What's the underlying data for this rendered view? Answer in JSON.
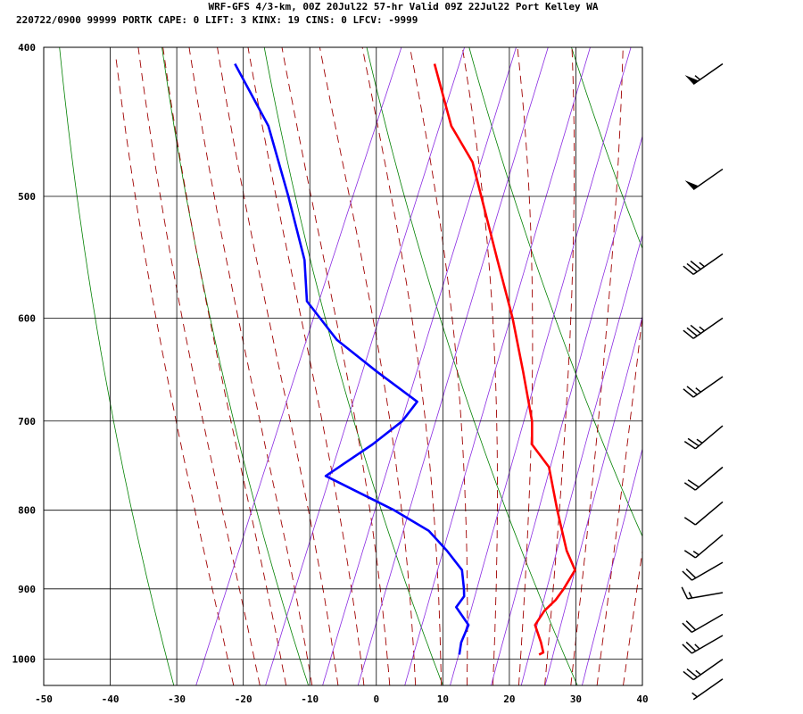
{
  "header": {
    "line1": "WRF-GFS 4/3-km, 00Z 20Jul22 57-hr Valid 09Z 22Jul22 Port Kelley WA",
    "line2": "220722/0900 99999  PORTK   CAPE:     0 LIFT:     3 KINX:    19 CINS:     0 LFCV: -9999"
  },
  "colors": {
    "temperature": "#ff0000",
    "dewpoint": "#0000ff",
    "isotherm_grid": "#000000",
    "dry_adiabat": "#008000",
    "moist_adiabat": "#a00000",
    "mixing_ratio": "#8a2be2",
    "wind_barb": "#000000"
  },
  "chart_data": {
    "type": "skew-t log-p sounding",
    "xlim": [
      -50,
      40
    ],
    "ylim": [
      1040,
      400
    ],
    "xticks": [
      "-50",
      "-40",
      "-30",
      "-20",
      "-10",
      "0",
      "10",
      "20",
      "30",
      "40"
    ],
    "yticks": [
      "400",
      "500",
      "600",
      "700",
      "800",
      "900",
      "1000"
    ],
    "grid": true,
    "series": [
      {
        "key": "temperature",
        "points": [
          {
            "p": 993,
            "t": 22.5
          },
          {
            "p": 990,
            "t": 23.0
          },
          {
            "p": 975,
            "t": 22.0
          },
          {
            "p": 950,
            "t": 20.0
          },
          {
            "p": 930,
            "t": 20.5
          },
          {
            "p": 915,
            "t": 21.5
          },
          {
            "p": 900,
            "t": 22.0
          },
          {
            "p": 875,
            "t": 22.5
          },
          {
            "p": 850,
            "t": 20.0
          },
          {
            "p": 800,
            "t": 16.0
          },
          {
            "p": 750,
            "t": 12.0
          },
          {
            "p": 725,
            "t": 8.0
          },
          {
            "p": 700,
            "t": 6.5
          },
          {
            "p": 650,
            "t": 2.0
          },
          {
            "p": 600,
            "t": -3.0
          },
          {
            "p": 550,
            "t": -9.0
          },
          {
            "p": 500,
            "t": -15.5
          },
          {
            "p": 475,
            "t": -19.0
          },
          {
            "p": 450,
            "t": -24.5
          },
          {
            "p": 410,
            "t": -31.0
          }
        ]
      },
      {
        "key": "dewpoint",
        "points": [
          {
            "p": 993,
            "t": 10.5
          },
          {
            "p": 975,
            "t": 10.0
          },
          {
            "p": 950,
            "t": 10.0
          },
          {
            "p": 925,
            "t": 7.0
          },
          {
            "p": 910,
            "t": 7.5
          },
          {
            "p": 900,
            "t": 7.0
          },
          {
            "p": 875,
            "t": 5.5
          },
          {
            "p": 850,
            "t": 2.0
          },
          {
            "p": 825,
            "t": -2.0
          },
          {
            "p": 800,
            "t": -8.5
          },
          {
            "p": 760,
            "t": -21.0
          },
          {
            "p": 725,
            "t": -16.0
          },
          {
            "p": 700,
            "t": -13.0
          },
          {
            "p": 680,
            "t": -12.0
          },
          {
            "p": 650,
            "t": -20.0
          },
          {
            "p": 620,
            "t": -28.0
          },
          {
            "p": 585,
            "t": -35.0
          },
          {
            "p": 550,
            "t": -38.0
          },
          {
            "p": 500,
            "t": -44.5
          },
          {
            "p": 450,
            "t": -52.0
          },
          {
            "p": 410,
            "t": -61.0
          }
        ]
      }
    ],
    "wind_barbs": [
      {
        "p": 410,
        "dir": 235,
        "kt": 55
      },
      {
        "p": 480,
        "dir": 235,
        "kt": 50
      },
      {
        "p": 545,
        "dir": 235,
        "kt": 35
      },
      {
        "p": 600,
        "dir": 235,
        "kt": 35
      },
      {
        "p": 655,
        "dir": 235,
        "kt": 25
      },
      {
        "p": 705,
        "dir": 230,
        "kt": 25
      },
      {
        "p": 750,
        "dir": 230,
        "kt": 20
      },
      {
        "p": 790,
        "dir": 230,
        "kt": 10
      },
      {
        "p": 830,
        "dir": 230,
        "kt": 15
      },
      {
        "p": 865,
        "dir": 240,
        "kt": 20
      },
      {
        "p": 905,
        "dir": 260,
        "kt": 15
      },
      {
        "p": 935,
        "dir": 240,
        "kt": 20
      },
      {
        "p": 965,
        "dir": 240,
        "kt": 25
      },
      {
        "p": 1000,
        "dir": 235,
        "kt": 25
      },
      {
        "p": 1030,
        "dir": 235,
        "kt": 5
      }
    ]
  }
}
